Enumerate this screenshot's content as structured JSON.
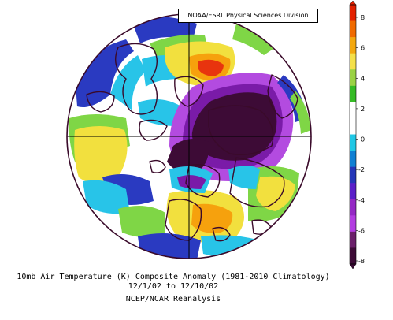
{
  "header": {
    "credit": "NOAA/ESRL Physical Sciences Division"
  },
  "caption": {
    "line1": "10mb Air Temperature (K) Composite Anomaly (1981-2010 Climatology)",
    "line2": "12/1/02  to 12/10/02",
    "line3": "NCEP/NCAR Reanalysis"
  },
  "colorbar": {
    "ticks": [
      "8",
      "6",
      "4",
      "2",
      "0",
      "-2",
      "-4",
      "-6",
      "-8"
    ],
    "colors": [
      "#e32000",
      "#f06a00",
      "#f3a80f",
      "#f4e04a",
      "#9ad244",
      "#35bb25",
      "#ffffff",
      "#ffffff",
      "#20c7e5",
      "#1080d3",
      "#2436b8",
      "#5a1fc8",
      "#9428c4",
      "#b23ce0",
      "#6b1f6a",
      "#3d0b36"
    ]
  },
  "map": {
    "projection": "north-polar-stereographic",
    "colors": {
      "dark_purple": "#3d0b36",
      "purple": "#7a1ba8",
      "violet": "#b34be0",
      "blue": "#2a3ac1",
      "cyan": "#28c4e8",
      "green": "#7fd646",
      "yellow": "#f2e03e",
      "orange": "#f6a10d",
      "red": "#e8340e",
      "coast": "#3a0a2a"
    }
  }
}
